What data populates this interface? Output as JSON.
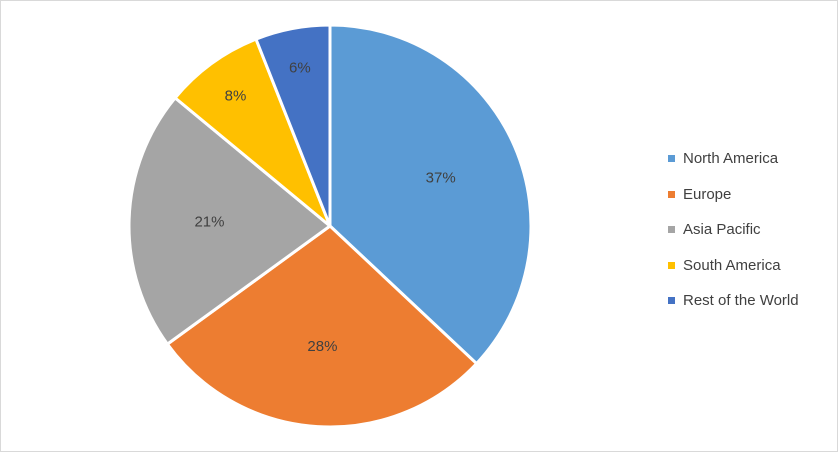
{
  "chart_data": {
    "type": "pie",
    "categories": [
      "North America",
      "Europe",
      "Asia Pacific",
      "South America",
      "Rest of the World"
    ],
    "values": [
      37,
      28,
      21,
      8,
      6
    ],
    "value_labels": [
      "37%",
      "28%",
      "21%",
      "8%",
      "6%"
    ],
    "colors": [
      "#5B9BD5",
      "#ED7D31",
      "#A5A5A5",
      "#FFC000",
      "#4472C4"
    ],
    "start_angle": "12 o'clock",
    "direction": "clockwise",
    "legend_position": "right"
  },
  "legend": {
    "items": [
      {
        "label": "North America",
        "color": "#5B9BD5"
      },
      {
        "label": "Europe",
        "color": "#ED7D31"
      },
      {
        "label": "Asia Pacific",
        "color": "#A5A5A5"
      },
      {
        "label": "South America",
        "color": "#FFC000"
      },
      {
        "label": "Rest of the World",
        "color": "#4472C4"
      }
    ]
  }
}
